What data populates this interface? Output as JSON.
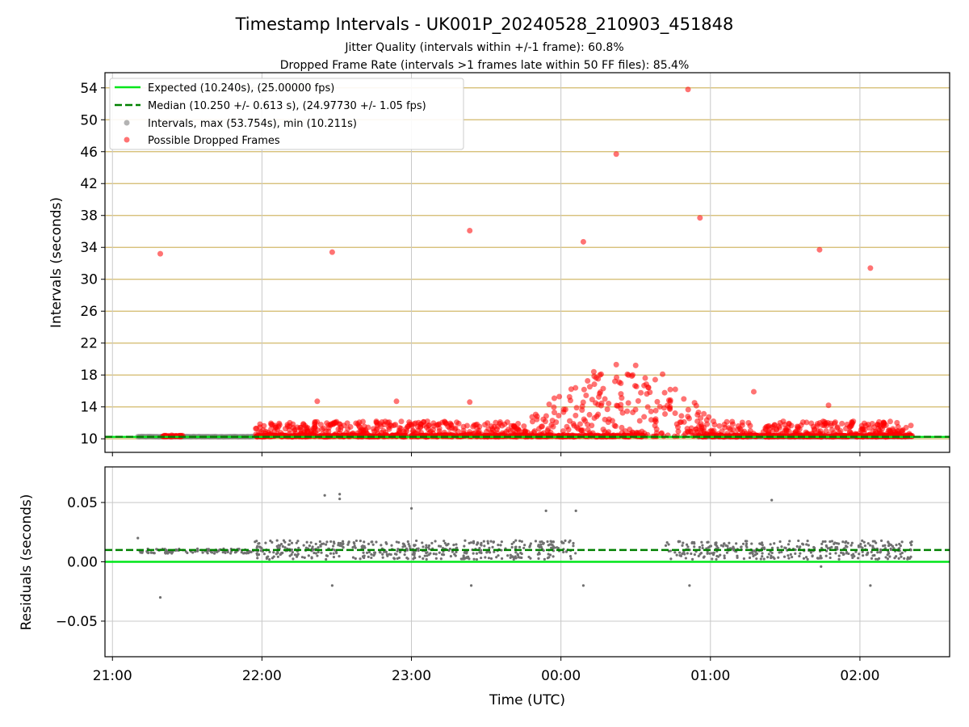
{
  "chart_data": [
    {
      "type": "scatter",
      "title": "Timestamp Intervals - UK001P_20240528_210903_451848",
      "subtitle_1": "Jitter Quality (intervals within +/-1 frame): 60.8%",
      "subtitle_2": "Dropped Frame Rate (intervals >1 frames late within 50 FF files): 85.4%",
      "ylabel": "Intervals (seconds)",
      "ylim": [
        8.3,
        55.9
      ],
      "yticks": [
        10,
        14,
        18,
        22,
        26,
        30,
        34,
        38,
        42,
        46,
        50,
        54
      ],
      "grid": "horizontal",
      "legend_position": "top-left",
      "legend": [
        "Expected (10.240s), (25.00000 fps)",
        "Median (10.250 +/- 0.613 s), (24.97730 +/- 1.05 fps)",
        "Intervals, max (53.754s), min (10.211s)",
        "Possible Dropped Frames"
      ],
      "expected_interval": 10.24,
      "median_interval": 10.25,
      "x_range_hours": [
        20.95,
        26.6
      ],
      "series": [
        {
          "name": "Possible Dropped Frames",
          "color": "#ff0000",
          "points": [
            [
              21.32,
              33.2
            ],
            [
              22.47,
              33.4
            ],
            [
              23.39,
              36.1
            ],
            [
              24.15,
              34.7
            ],
            [
              24.37,
              45.7
            ],
            [
              24.85,
              53.8
            ],
            [
              24.93,
              37.7
            ],
            [
              25.73,
              33.7
            ],
            [
              26.07,
              31.4
            ],
            [
              22.37,
              14.7
            ],
            [
              22.9,
              14.7
            ],
            [
              23.39,
              14.6
            ],
            [
              24.37,
              19.3
            ],
            [
              24.5,
              19.2
            ],
            [
              25.29,
              15.9
            ],
            [
              24.22,
              18.4
            ],
            [
              24.68,
              18.1
            ],
            [
              25.79,
              14.2
            ]
          ]
        }
      ],
      "regular_intervals_hours": [
        [
          21.17,
          21.95
        ],
        [
          24.92,
          26.35
        ]
      ],
      "dense_bands": [
        {
          "from": 21.95,
          "to": 26.35,
          "center": 24.4,
          "half_width": 0.7,
          "peak": 18.4
        }
      ]
    },
    {
      "type": "scatter",
      "ylabel": "Residuals (seconds)",
      "xlabel": "Time (UTC)",
      "ylim": [
        -0.08,
        0.08
      ],
      "yticks": [
        -0.05,
        0.0,
        0.05
      ],
      "ytick_labels": [
        "−0.05",
        "0.00",
        "0.05"
      ],
      "xticks": [
        "21:00",
        "22:00",
        "23:00",
        "00:00",
        "01:00",
        "02:00"
      ],
      "xtick_values": [
        21,
        22,
        23,
        24,
        25,
        26
      ],
      "zero_line": 0.0,
      "median_line": 0.01,
      "residual_outliers": [
        [
          21.17,
          0.02
        ],
        [
          21.32,
          -0.03
        ],
        [
          22.42,
          0.056
        ],
        [
          22.47,
          -0.02
        ],
        [
          22.52,
          0.057
        ],
        [
          22.52,
          0.053
        ],
        [
          23.0,
          0.045
        ],
        [
          23.4,
          -0.02
        ],
        [
          23.9,
          0.043
        ],
        [
          24.1,
          0.043
        ],
        [
          24.15,
          -0.02
        ],
        [
          24.86,
          -0.02
        ],
        [
          25.41,
          0.052
        ],
        [
          25.74,
          -0.004
        ],
        [
          26.07,
          -0.02
        ]
      ]
    }
  ]
}
